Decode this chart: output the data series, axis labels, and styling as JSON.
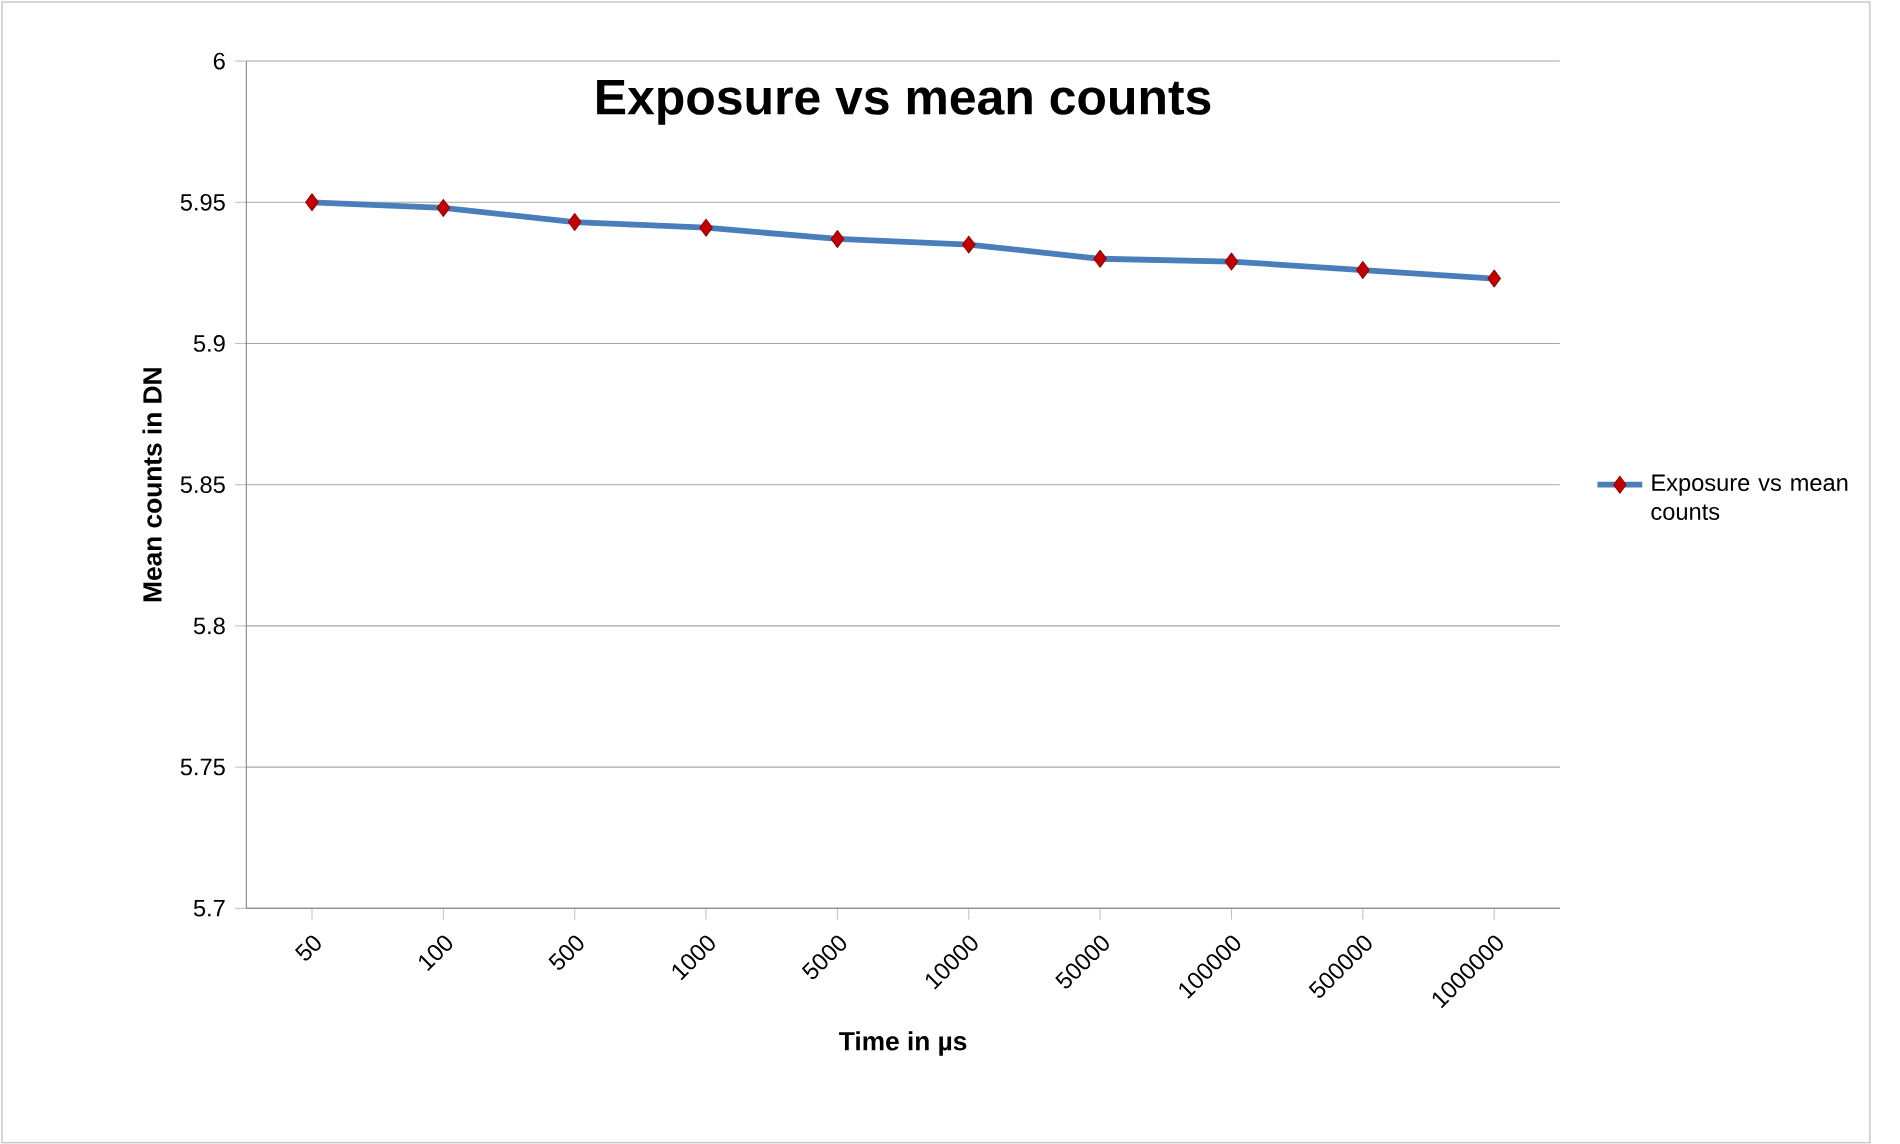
{
  "chart_data": {
    "type": "line",
    "title": "Exposure vs mean counts",
    "xlabel": "Time in µs",
    "ylabel": "Mean counts in DN",
    "categories": [
      "50",
      "100",
      "500",
      "1000",
      "5000",
      "10000",
      "50000",
      "100000",
      "500000",
      "1000000"
    ],
    "series": [
      {
        "name": "Exposure vs mean counts",
        "color": "#4a7ebb",
        "values": [
          5.95,
          5.948,
          5.943,
          5.941,
          5.937,
          5.935,
          5.93,
          5.929,
          5.926,
          5.923
        ]
      }
    ],
    "ylim": [
      5.7,
      6
    ],
    "yticks": [
      5.7,
      5.75,
      5.8,
      5.85,
      5.9,
      5.95,
      6
    ],
    "grid": "y",
    "legend": "right",
    "marker": "diamond",
    "line_style": "solid"
  }
}
